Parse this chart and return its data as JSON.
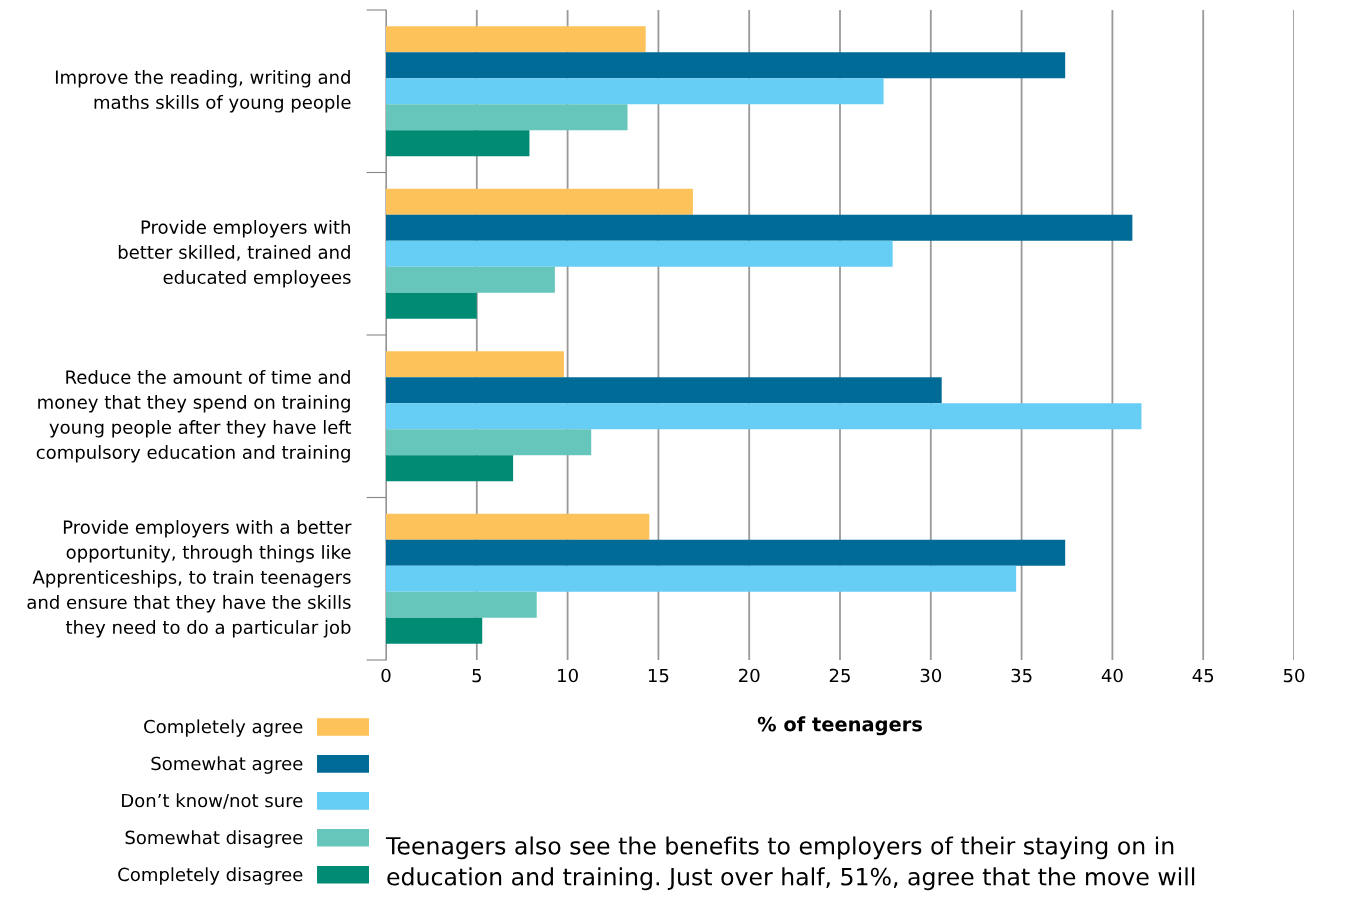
{
  "chart_data": {
    "type": "bar",
    "orientation": "horizontal",
    "xlabel": "% of teenagers",
    "categories": [
      "Improve the reading, writing and\nmaths skills of young people",
      "Provide employers with\nbetter skilled, trained and\neducated employees",
      "Reduce the amount of time and\nmoney that they spend on training\nyoung people after they have left\ncompulsory education and training",
      "Provide employers with a better\nopportunity, through things like\nApprenticeships, to train teenagers\nand ensure that they have the skills\nthey need to do a particular job"
    ],
    "series": [
      {
        "name": "Completely agree",
        "color": "#fdc35a",
        "values": [
          14.3,
          16.9,
          9.8,
          14.5
        ]
      },
      {
        "name": "Somewhat agree",
        "color": "#006b96",
        "values": [
          37.4,
          41.1,
          30.6,
          37.4
        ]
      },
      {
        "name": "Don’t know/not sure",
        "color": "#66cdf4",
        "values": [
          27.4,
          27.9,
          41.6,
          34.7
        ]
      },
      {
        "name": "Somewhat disagree",
        "color": "#66c6bc",
        "values": [
          13.3,
          9.3,
          11.3,
          8.3
        ]
      },
      {
        "name": "Completely disagree",
        "color": "#008c74",
        "values": [
          7.9,
          5.0,
          7.0,
          5.3
        ]
      }
    ],
    "xlim": [
      0,
      50
    ],
    "xticks": [
      0,
      5,
      10,
      15,
      20,
      25,
      30,
      35,
      40,
      45,
      50
    ],
    "grid": "x",
    "legend": "bottom left",
    "annotations": [
      "Teenagers also see the benefits to employers of their staying on in\neducation and training. Just over half, 51%, agree that the move will"
    ]
  }
}
